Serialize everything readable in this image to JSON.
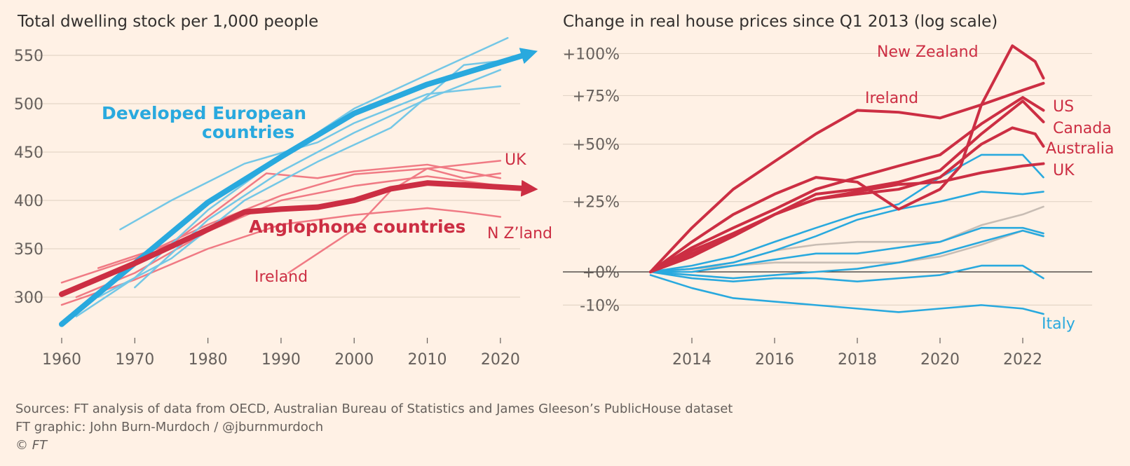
{
  "colors": {
    "anglophone": "#cc2e43",
    "anglophone_light": "#f07a84",
    "european": "#29a9de",
    "european_light": "#74c7e6",
    "other": "#c8bdb4"
  },
  "footer": {
    "sources": "Sources: FT analysis of data from OECD, Australian Bureau of Statistics and James Gleeson’s PublicHouse dataset",
    "credit": "FT graphic: John Burn-Murdoch / @jburnmurdoch",
    "copyright": "© FT"
  },
  "chart_data": [
    {
      "type": "line",
      "title": "Total dwelling stock per 1,000 people",
      "xlabel": "",
      "ylabel": "",
      "xlim": [
        1960,
        2025
      ],
      "ylim": [
        270,
        565
      ],
      "xticks": [
        1960,
        1970,
        1980,
        1990,
        2000,
        2010,
        2020
      ],
      "yticks": [
        300,
        350,
        400,
        450,
        500,
        550
      ],
      "grid": true,
      "series": [
        {
          "name": "Developed European countries",
          "group": "european",
          "trend": true,
          "x": [
            1960,
            1970,
            1980,
            1990,
            2000,
            2010,
            2024
          ],
          "y": [
            272,
            335,
            398,
            445,
            490,
            520,
            552
          ]
        },
        {
          "name": "Anglophone countries",
          "group": "anglophone",
          "trend": true,
          "x": [
            1960,
            1970,
            1980,
            1985,
            1990,
            1995,
            2000,
            2005,
            2010,
            2015,
            2024
          ],
          "y": [
            303,
            335,
            370,
            388,
            391,
            393,
            400,
            412,
            418,
            416,
            412
          ]
        },
        {
          "name": "UK",
          "group": "anglophone",
          "x": [
            1960,
            1970,
            1980,
            1990,
            2000,
            2010,
            2020
          ],
          "y": [
            315,
            340,
            375,
            405,
            427,
            433,
            441
          ]
        },
        {
          "name": "N Z’land",
          "group": "anglophone",
          "x": [
            1960,
            1970,
            1980,
            1990,
            2000,
            2010,
            2015,
            2020
          ],
          "y": [
            292,
            318,
            350,
            375,
            385,
            392,
            388,
            383
          ]
        },
        {
          "name": "Ireland",
          "group": "anglophone",
          "x": [
            1991,
            1995,
            2000,
            2005,
            2010,
            2015,
            2020
          ],
          "y": [
            325,
            345,
            370,
            410,
            433,
            423,
            428
          ]
        },
        {
          "name": "",
          "group": "anglophone",
          "x": [
            1965,
            1975,
            1988,
            1995,
            2000,
            2010,
            2020
          ],
          "y": [
            330,
            355,
            428,
            423,
            430,
            437,
            423
          ]
        },
        {
          "name": "",
          "group": "anglophone",
          "x": [
            1962,
            1970,
            1980,
            1990,
            2000,
            2010,
            2020
          ],
          "y": [
            300,
            325,
            368,
            400,
            415,
            425,
            415
          ]
        },
        {
          "name": "",
          "group": "european",
          "x": [
            1968,
            1975,
            1985,
            1995,
            2000,
            2010,
            2020
          ],
          "y": [
            370,
            400,
            438,
            460,
            480,
            510,
            518
          ]
        },
        {
          "name": "",
          "group": "european",
          "x": [
            1962,
            1970,
            1980,
            1990,
            2000,
            2010,
            2021
          ],
          "y": [
            280,
            320,
            390,
            445,
            495,
            530,
            568
          ]
        },
        {
          "name": "",
          "group": "european",
          "x": [
            1965,
            1975,
            1985,
            1995,
            2005,
            2015,
            2021
          ],
          "y": [
            300,
            340,
            400,
            440,
            475,
            540,
            545
          ]
        },
        {
          "name": "",
          "group": "european",
          "x": [
            1970,
            1980,
            1990,
            2000,
            2010,
            2020
          ],
          "y": [
            310,
            380,
            430,
            470,
            505,
            535
          ]
        }
      ],
      "annotations": [
        "Developed European",
        "countries",
        "Anglophone countries",
        "UK",
        "N Z’land",
        "Ireland"
      ]
    },
    {
      "type": "line",
      "title": "Change in real house prices since Q1 2013 (log scale)",
      "xlabel": "",
      "ylabel": "",
      "xlim": [
        2012.5,
        2024.0
      ],
      "ylim": [
        -0.14,
        1.08
      ],
      "yscale": "log",
      "xticks": [
        2014,
        2016,
        2018,
        2020,
        2022
      ],
      "yticks": [
        -0.1,
        0,
        0.25,
        0.5,
        0.75,
        1.0
      ],
      "ytick_labels": [
        "-10%",
        "+0%",
        "+25%",
        "+50%",
        "+75%",
        "+100%"
      ],
      "grid": true,
      "series": [
        {
          "name": "New Zealand",
          "group": "anglophone",
          "x": [
            2013,
            2014,
            2015,
            2016,
            2017,
            2018,
            2019,
            2020,
            2020.5,
            2021,
            2021.75,
            2022.3,
            2022.5
          ],
          "y": [
            0,
            0.1,
            0.2,
            0.28,
            0.35,
            0.33,
            0.22,
            0.3,
            0.4,
            0.7,
            1.05,
            0.95,
            0.85
          ]
        },
        {
          "name": "Ireland",
          "group": "anglophone",
          "x": [
            2013,
            2014,
            2015,
            2016,
            2017,
            2018,
            2019,
            2020,
            2021,
            2022,
            2022.5
          ],
          "y": [
            0,
            0.15,
            0.3,
            0.42,
            0.55,
            0.67,
            0.66,
            0.63,
            0.7,
            0.78,
            0.82
          ]
        },
        {
          "name": "US",
          "group": "anglophone",
          "x": [
            2013,
            2014,
            2015,
            2016,
            2017,
            2018,
            2019,
            2020,
            2021,
            2022,
            2022.5
          ],
          "y": [
            0,
            0.08,
            0.15,
            0.22,
            0.3,
            0.35,
            0.4,
            0.45,
            0.6,
            0.74,
            0.67
          ]
        },
        {
          "name": "Canada",
          "group": "anglophone",
          "x": [
            2013,
            2014,
            2015,
            2016,
            2017,
            2018,
            2019,
            2020,
            2021,
            2022,
            2022.5
          ],
          "y": [
            0,
            0.07,
            0.13,
            0.2,
            0.28,
            0.3,
            0.33,
            0.38,
            0.55,
            0.72,
            0.61
          ]
        },
        {
          "name": "Australia",
          "group": "anglophone",
          "x": [
            2013,
            2014,
            2015,
            2016,
            2017,
            2018,
            2019,
            2020,
            2021,
            2021.75,
            2022.3,
            2022.5
          ],
          "y": [
            0,
            0.06,
            0.12,
            0.2,
            0.26,
            0.28,
            0.3,
            0.35,
            0.5,
            0.58,
            0.55,
            0.49
          ]
        },
        {
          "name": "UK",
          "group": "anglophone",
          "x": [
            2013,
            2014,
            2015,
            2016,
            2017,
            2018,
            2019,
            2020,
            2021,
            2022,
            2022.5
          ],
          "y": [
            0,
            0.05,
            0.12,
            0.2,
            0.26,
            0.29,
            0.32,
            0.33,
            0.37,
            0.4,
            0.41
          ]
        },
        {
          "name": "Italy",
          "group": "european",
          "x": [
            2013,
            2014,
            2015,
            2016,
            2017,
            2018,
            2019,
            2020,
            2021,
            2022,
            2022.5
          ],
          "y": [
            -0.01,
            -0.05,
            -0.08,
            -0.09,
            -0.1,
            -0.11,
            -0.12,
            -0.11,
            -0.1,
            -0.11,
            -0.125
          ]
        },
        {
          "name": "",
          "group": "european",
          "x": [
            2013,
            2014,
            2015,
            2016,
            2017,
            2018,
            2019,
            2020,
            2021,
            2022,
            2022.5
          ],
          "y": [
            0,
            0.02,
            0.05,
            0.1,
            0.15,
            0.2,
            0.24,
            0.35,
            0.45,
            0.45,
            0.35
          ]
        },
        {
          "name": "",
          "group": "european",
          "x": [
            2013,
            2014,
            2015,
            2016,
            2017,
            2018,
            2019,
            2020,
            2021,
            2022,
            2022.5
          ],
          "y": [
            0,
            0.01,
            0.03,
            0.07,
            0.12,
            0.18,
            0.22,
            0.25,
            0.29,
            0.28,
            0.29
          ]
        },
        {
          "name": "",
          "group": "european",
          "x": [
            2013,
            2014,
            2015,
            2016,
            2017,
            2018,
            2019,
            2020,
            2021,
            2022,
            2022.5
          ],
          "y": [
            0,
            0.0,
            0.02,
            0.04,
            0.06,
            0.06,
            0.08,
            0.1,
            0.15,
            0.15,
            0.13
          ]
        },
        {
          "name": "",
          "group": "european",
          "x": [
            2013,
            2014,
            2015,
            2016,
            2017,
            2018,
            2019,
            2020,
            2021,
            2022,
            2022.5
          ],
          "y": [
            0,
            -0.01,
            -0.02,
            -0.01,
            0.0,
            0.01,
            0.03,
            0.06,
            0.1,
            0.14,
            0.12
          ]
        },
        {
          "name": "",
          "group": "european",
          "x": [
            2013,
            2014,
            2015,
            2016,
            2017,
            2018,
            2019,
            2020,
            2021,
            2022,
            2022.5
          ],
          "y": [
            0,
            -0.02,
            -0.03,
            -0.02,
            -0.02,
            -0.03,
            -0.02,
            -0.01,
            0.02,
            0.02,
            -0.02
          ]
        },
        {
          "name": "",
          "group": "other",
          "x": [
            2013,
            2014,
            2015,
            2016,
            2017,
            2018,
            2019,
            2020,
            2021,
            2022,
            2022.5
          ],
          "y": [
            0,
            0.01,
            0.03,
            0.07,
            0.09,
            0.1,
            0.1,
            0.1,
            0.16,
            0.2,
            0.23
          ]
        },
        {
          "name": "",
          "group": "other",
          "x": [
            2013,
            2014,
            2015,
            2016,
            2017,
            2018,
            2019,
            2020,
            2021,
            2022,
            2022.5
          ],
          "y": [
            0,
            0.01,
            0.02,
            0.03,
            0.03,
            0.03,
            0.03,
            0.05,
            0.09,
            0.14,
            0.12
          ]
        }
      ],
      "annotations": [
        "New Zealand",
        "Ireland",
        "US",
        "Canada",
        "Australia",
        "UK",
        "Italy"
      ]
    }
  ]
}
